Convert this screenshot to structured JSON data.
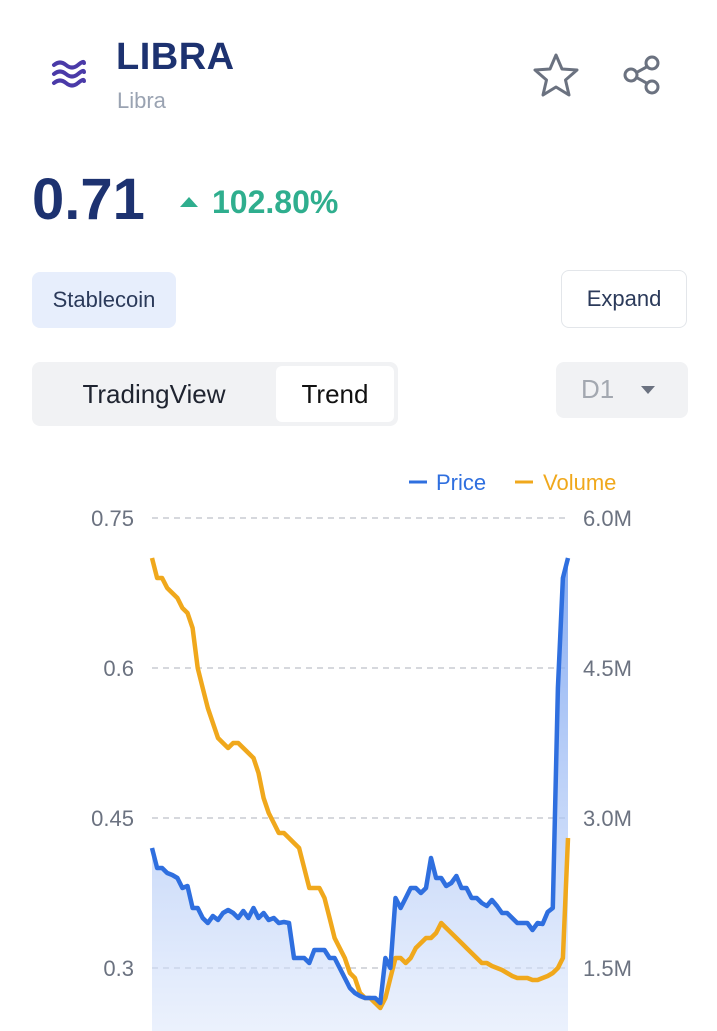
{
  "header": {
    "ticker": "LIBRA",
    "name": "Libra",
    "logo_icon": "libra-logo-icon",
    "favorite_icon": "star-icon",
    "share_icon": "share-icon"
  },
  "price": {
    "value": "0.71",
    "change": "102.80%",
    "direction_icon": "triangle-up-icon",
    "change_color": "#2fae8e"
  },
  "tag": {
    "label": "Stablecoin"
  },
  "expand": {
    "label": "Expand"
  },
  "tabs": [
    {
      "label": "TradingView",
      "active": false
    },
    {
      "label": "Trend",
      "active": true
    }
  ],
  "interval": {
    "selected": "D1",
    "caret_icon": "caret-down-icon"
  },
  "colors": {
    "brand": "#1d3270",
    "price_line": "#2f6fdf",
    "volume_line": "#f0a81c",
    "up": "#2fae8e"
  },
  "chart_data": {
    "type": "line",
    "legend": [
      "Price",
      "Volume"
    ],
    "legend_position": "top-right",
    "grid": true,
    "y_left": {
      "ticks": [
        "0.75",
        "0.6",
        "0.45",
        "0.3"
      ],
      "range": [
        0.26,
        0.75
      ]
    },
    "y_right": {
      "ticks": [
        "6.0M",
        "4.5M",
        "3.0M",
        "1.5M"
      ],
      "range": [
        1.1,
        6.0
      ]
    },
    "series": [
      {
        "name": "Price",
        "axis": "left",
        "fill": true,
        "values": [
          0.42,
          0.4,
          0.4,
          0.395,
          0.393,
          0.39,
          0.38,
          0.382,
          0.36,
          0.36,
          0.35,
          0.345,
          0.352,
          0.348,
          0.355,
          0.358,
          0.355,
          0.35,
          0.357,
          0.35,
          0.36,
          0.35,
          0.355,
          0.348,
          0.35,
          0.345,
          0.346,
          0.345,
          0.31,
          0.31,
          0.31,
          0.305,
          0.318,
          0.318,
          0.318,
          0.31,
          0.31,
          0.3,
          0.29,
          0.28,
          0.275,
          0.272,
          0.27,
          0.27,
          0.27,
          0.265,
          0.31,
          0.3,
          0.37,
          0.36,
          0.37,
          0.38,
          0.38,
          0.375,
          0.38,
          0.41,
          0.39,
          0.39,
          0.382,
          0.385,
          0.392,
          0.38,
          0.38,
          0.37,
          0.37,
          0.365,
          0.362,
          0.368,
          0.362,
          0.355,
          0.355,
          0.35,
          0.345,
          0.345,
          0.345,
          0.338,
          0.345,
          0.344,
          0.356,
          0.36,
          0.58,
          0.69,
          0.71
        ]
      },
      {
        "name": "Volume",
        "axis": "right",
        "fill": false,
        "values": [
          5.6,
          5.4,
          5.4,
          5.3,
          5.25,
          5.2,
          5.1,
          5.05,
          4.9,
          4.5,
          4.3,
          4.1,
          3.95,
          3.8,
          3.75,
          3.7,
          3.75,
          3.75,
          3.7,
          3.65,
          3.6,
          3.45,
          3.2,
          3.05,
          2.95,
          2.85,
          2.85,
          2.8,
          2.75,
          2.7,
          2.5,
          2.3,
          2.3,
          2.3,
          2.2,
          2.0,
          1.8,
          1.7,
          1.6,
          1.45,
          1.4,
          1.25,
          1.2,
          1.2,
          1.15,
          1.1,
          1.2,
          1.4,
          1.6,
          1.6,
          1.55,
          1.6,
          1.7,
          1.75,
          1.8,
          1.8,
          1.85,
          1.95,
          1.9,
          1.85,
          1.8,
          1.75,
          1.7,
          1.65,
          1.6,
          1.55,
          1.55,
          1.52,
          1.5,
          1.48,
          1.45,
          1.42,
          1.4,
          1.4,
          1.4,
          1.38,
          1.38,
          1.4,
          1.42,
          1.45,
          1.5,
          1.6,
          2.8
        ]
      }
    ]
  }
}
